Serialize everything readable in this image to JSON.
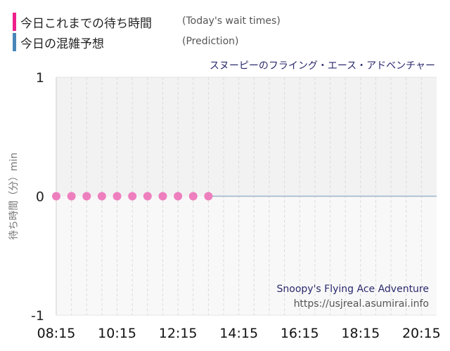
{
  "legend": [
    {
      "label": "今日これまでの待ち時間",
      "label_en": "(Today's wait times)",
      "color": "#ee1f8c"
    },
    {
      "label": "今日の混雑予想",
      "label_en": "(Prediction)",
      "color": "#4a86b8"
    }
  ],
  "chart_data": {
    "type": "scatter",
    "title": "スヌーピーのフライング・エース・アドベンチャー",
    "ylabel": "待ち時間（分）min",
    "ylim": [
      -1,
      1
    ],
    "yticks": [
      "1",
      "0",
      "-1"
    ],
    "xticks": [
      "08:15",
      "10:15",
      "12:15",
      "14:15",
      "16:15",
      "18:15",
      "20:15"
    ],
    "xrange": [
      "08:15",
      "20:45"
    ],
    "series": [
      {
        "name": "今日これまでの待ち時間",
        "type": "scatter",
        "color": "#ee7fbf",
        "x": [
          "08:15",
          "08:45",
          "09:15",
          "09:45",
          "10:15",
          "10:45",
          "11:15",
          "11:45",
          "12:15",
          "12:45",
          "13:15"
        ],
        "y": [
          0,
          0,
          0,
          0,
          0,
          0,
          0,
          0,
          0,
          0,
          0
        ]
      },
      {
        "name": "今日の混雑予想",
        "type": "line",
        "color": "#9bb3cc",
        "x": [
          "13:15",
          "20:45"
        ],
        "y": [
          0,
          0
        ]
      }
    ],
    "watermark_title": "Snoopy's Flying Ace Adventure",
    "watermark_url": "https://usjreal.asumirai.info",
    "colors": {
      "upper_bg": "#f2f2f2",
      "lower_bg": "#f8f8f8",
      "title": "#2a2a6e"
    }
  }
}
